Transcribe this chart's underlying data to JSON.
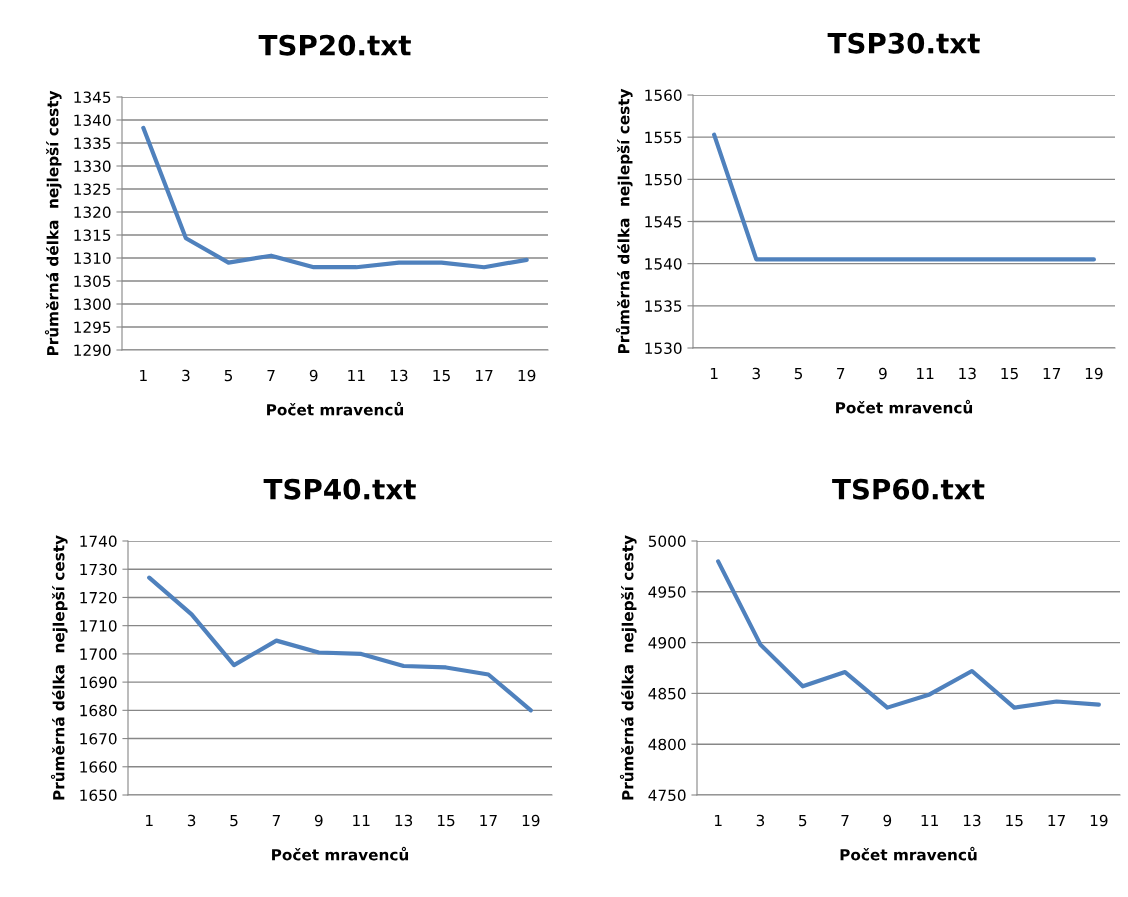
{
  "chart_data": [
    {
      "type": "line",
      "title": "TSP20.txt",
      "xlabel": "Počet mravenců",
      "ylabel": "Průměrná délka  nejlepší cesty",
      "categories": [
        "1",
        "3",
        "5",
        "7",
        "9",
        "11",
        "13",
        "15",
        "17",
        "19"
      ],
      "series": [
        {
          "color": "#4f81bd",
          "values": [
            1338.3,
            1314.3,
            1309,
            1310.5,
            1308,
            1308,
            1309,
            1309,
            1308,
            1309.6
          ]
        }
      ],
      "ylim": [
        1290,
        1345
      ],
      "yticks": [
        1290,
        1295,
        1300,
        1305,
        1310,
        1315,
        1320,
        1325,
        1330,
        1335,
        1340,
        1345
      ],
      "grid": "y",
      "legend": false,
      "marker": "none",
      "line_style": "solid"
    },
    {
      "type": "line",
      "title": "TSP30.txt",
      "xlabel": "Počet mravenců",
      "ylabel": "Průměrná délka  nejlepší cesty",
      "categories": [
        "1",
        "3",
        "5",
        "7",
        "9",
        "11",
        "13",
        "15",
        "17",
        "19"
      ],
      "series": [
        {
          "color": "#4f81bd",
          "values": [
            1555.3,
            1540.5,
            1540.5,
            1540.5,
            1540.5,
            1540.5,
            1540.5,
            1540.5,
            1540.5,
            1540.5
          ]
        }
      ],
      "ylim": [
        1530,
        1560
      ],
      "yticks": [
        1530,
        1535,
        1540,
        1545,
        1550,
        1555,
        1560
      ],
      "grid": "y",
      "legend": false,
      "marker": "none",
      "line_style": "solid"
    },
    {
      "type": "line",
      "title": "TSP40.txt",
      "xlabel": "Počet mravenců",
      "ylabel": "Průměrná délka  nejlepší cesty",
      "categories": [
        "1",
        "3",
        "5",
        "7",
        "9",
        "11",
        "13",
        "15",
        "17",
        "19"
      ],
      "series": [
        {
          "color": "#4f81bd",
          "values": [
            1727,
            1714,
            1696,
            1704.7,
            1700.5,
            1700,
            1695.7,
            1695.2,
            1692.7,
            1680
          ]
        }
      ],
      "ylim": [
        1650,
        1740
      ],
      "yticks": [
        1650,
        1660,
        1670,
        1680,
        1690,
        1700,
        1710,
        1720,
        1730,
        1740
      ],
      "grid": "y",
      "legend": false,
      "marker": "none",
      "line_style": "solid"
    },
    {
      "type": "line",
      "title": "TSP60.txt",
      "xlabel": "Počet mravenců",
      "ylabel": "Průměrná délka  nejlepší cesty",
      "categories": [
        "1",
        "3",
        "5",
        "7",
        "9",
        "11",
        "13",
        "15",
        "17",
        "19"
      ],
      "series": [
        {
          "color": "#4f81bd",
          "values": [
            4980,
            4898,
            4857,
            4871,
            4836,
            4849,
            4872,
            4836,
            4842,
            4839
          ]
        }
      ],
      "ylim": [
        4750,
        5000
      ],
      "yticks": [
        4750,
        4800,
        4850,
        4900,
        4950,
        5000
      ],
      "grid": "y",
      "legend": false,
      "marker": "none",
      "line_style": "solid"
    }
  ]
}
